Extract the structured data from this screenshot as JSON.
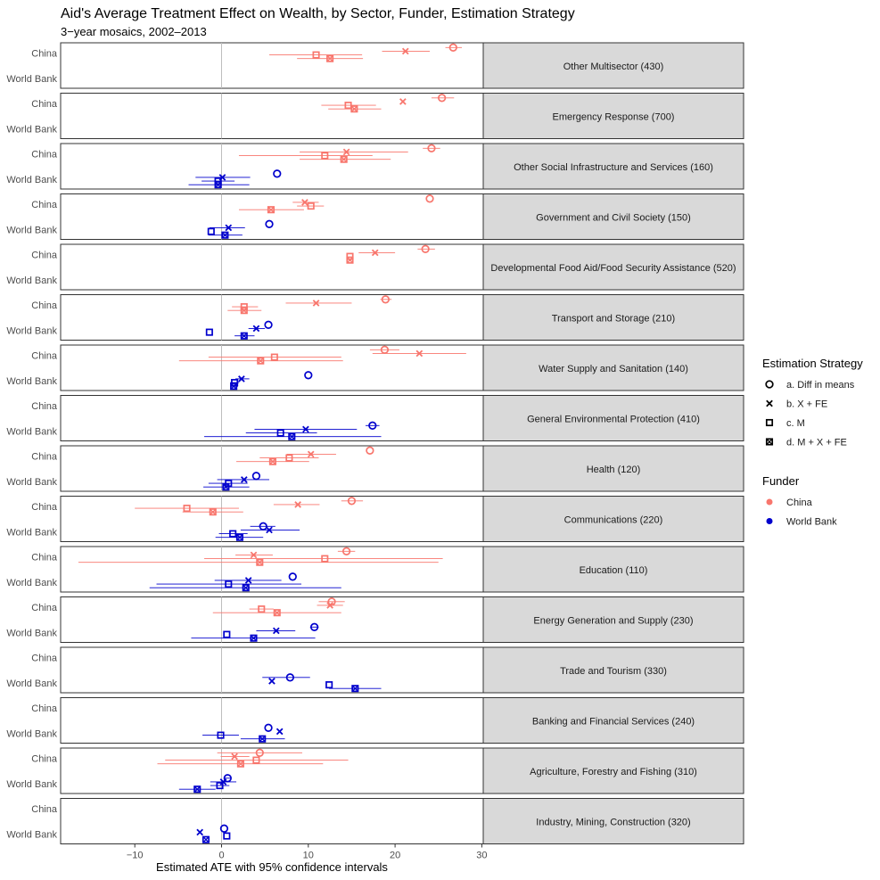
{
  "chart_data": {
    "type": "scatter",
    "title": "Aid's Average Treatment Effect on Wealth, by Sector, Funder, Estimation Strategy",
    "subtitle": "3−year mosaics, 2002–2013",
    "xlabel": "Estimated ATE with 95% confidence intervals",
    "ylabel": "",
    "xlim": [
      -19,
      30.5
    ],
    "x_ticks": [
      -10,
      0,
      10,
      20,
      30
    ],
    "x_tick_labels": [
      "−10",
      "0",
      "10",
      "20",
      "30"
    ],
    "funders": [
      "China",
      "World Bank"
    ],
    "legend_strategy": {
      "title": "Estimation Strategy",
      "entries": [
        "a. Diff in means",
        "b. X + FE",
        "c. M",
        "d. M + X + FE"
      ]
    },
    "legend_funder": {
      "title": "Funder",
      "entries": [
        "China",
        "World Bank"
      ]
    },
    "colors": {
      "China": "#F8766D",
      "World Bank": "#0000CD",
      "strip": "#D9D9D9",
      "zero_line": "#BEBEBE"
    },
    "panels": [
      {
        "label": "Other Multisector (430)",
        "china": [
          [
            26.7,
            25.8,
            27.7
          ],
          [
            21.2,
            18.5,
            24.0
          ],
          [
            10.9,
            5.5,
            16.2
          ],
          [
            12.5,
            8.7,
            16.3
          ]
        ],
        "wb": []
      },
      {
        "label": "Emergency Response (700)",
        "china": [
          [
            25.4,
            24.2,
            26.8
          ],
          [
            20.9,
            20.9,
            20.9
          ],
          [
            14.6,
            11.5,
            17.8
          ],
          [
            15.3,
            12.3,
            18.4
          ]
        ],
        "wb": []
      },
      {
        "label": "Other Social Infrastructure and Services (160)",
        "china": [
          [
            24.2,
            23.2,
            25.2
          ],
          [
            14.4,
            9.0,
            21.5
          ],
          [
            11.9,
            2.0,
            17.4
          ],
          [
            14.1,
            9.0,
            19.5
          ]
        ],
        "wb": [
          [
            6.4,
            6.4,
            6.4
          ],
          [
            0.1,
            -3.0,
            3.3
          ],
          [
            -0.4,
            -2.3,
            1.5
          ],
          [
            -0.4,
            -3.8,
            3.2
          ]
        ]
      },
      {
        "label": "Government and Civil Society (150)",
        "china": [
          [
            24.0,
            24.0,
            24.0
          ],
          [
            9.6,
            8.2,
            11.2
          ],
          [
            10.3,
            8.7,
            11.8
          ],
          [
            5.7,
            2.0,
            9.5
          ]
        ],
        "wb": [
          [
            5.5,
            5.5,
            5.5
          ],
          [
            0.8,
            -1.4,
            2.7
          ],
          [
            -1.2,
            -1.2,
            -1.2
          ],
          [
            0.4,
            -1.5,
            2.4
          ]
        ]
      },
      {
        "label": "Developmental Food Aid/Food Security Assistance (520)",
        "china": [
          [
            23.5,
            22.6,
            24.6
          ],
          [
            17.7,
            15.8,
            20.0
          ],
          [
            14.8,
            14.8,
            14.8
          ],
          [
            14.8,
            14.8,
            14.8
          ]
        ],
        "wb": []
      },
      {
        "label": "Transport and Storage (210)",
        "china": [
          [
            18.9,
            18.3,
            19.6
          ],
          [
            10.9,
            7.4,
            15.0
          ],
          [
            2.6,
            1.2,
            4.2
          ],
          [
            2.6,
            0.7,
            4.6
          ]
        ],
        "wb": [
          [
            5.4,
            5.4,
            5.4
          ],
          [
            4.0,
            3.1,
            5.0
          ],
          [
            -1.4,
            -1.4,
            -1.4
          ],
          [
            2.6,
            1.5,
            3.8
          ]
        ]
      },
      {
        "label": "Water Supply and Sanitation (140)",
        "china": [
          [
            18.8,
            17.1,
            20.5
          ],
          [
            22.8,
            17.4,
            28.2
          ],
          [
            6.1,
            -1.5,
            13.8
          ],
          [
            4.5,
            -4.9,
            14.0
          ]
        ],
        "wb": [
          [
            10.0,
            10.0,
            10.0
          ],
          [
            2.3,
            1.6,
            3.2
          ],
          [
            1.5,
            1.0,
            2.0
          ],
          [
            1.4,
            1.0,
            1.9
          ]
        ]
      },
      {
        "label": "General Environmental Protection (410)",
        "china": [],
        "wb": [
          [
            17.4,
            16.6,
            18.2
          ],
          [
            9.7,
            3.8,
            15.6
          ],
          [
            6.8,
            2.8,
            11.0
          ],
          [
            8.1,
            -2.0,
            18.4
          ]
        ]
      },
      {
        "label": "Health (120)",
        "china": [
          [
            17.1,
            17.1,
            17.1
          ],
          [
            10.3,
            7.5,
            13.2
          ],
          [
            7.8,
            4.4,
            11.2
          ],
          [
            5.9,
            1.7,
            10.1
          ]
        ],
        "wb": [
          [
            4.0,
            4.0,
            4.0
          ],
          [
            2.6,
            -0.5,
            5.5
          ],
          [
            0.8,
            -1.5,
            3.0
          ],
          [
            0.5,
            -2.1,
            3.2
          ]
        ]
      },
      {
        "label": "Communications (220)",
        "china": [
          [
            15.0,
            13.8,
            16.3
          ],
          [
            8.8,
            6.0,
            11.3
          ],
          [
            -4.0,
            -10.0,
            2.0
          ],
          [
            -1.0,
            -4.5,
            2.5
          ]
        ],
        "wb": [
          [
            4.8,
            3.3,
            6.2
          ],
          [
            5.5,
            2.2,
            9.0
          ],
          [
            1.3,
            -0.3,
            3.0
          ],
          [
            2.1,
            -0.7,
            4.8
          ]
        ]
      },
      {
        "label": "Education (110)",
        "china": [
          [
            14.4,
            13.4,
            15.4
          ],
          [
            3.7,
            1.6,
            5.9
          ],
          [
            11.9,
            -2.0,
            25.5
          ],
          [
            4.4,
            -16.5,
            25.0
          ]
        ],
        "wb": [
          [
            8.2,
            8.2,
            8.2
          ],
          [
            3.1,
            -0.8,
            6.9
          ],
          [
            0.8,
            -7.5,
            9.2
          ],
          [
            2.8,
            -8.3,
            13.8
          ]
        ]
      },
      {
        "label": "Energy Generation and Supply (230)",
        "china": [
          [
            12.7,
            11.2,
            14.2
          ],
          [
            12.5,
            11.0,
            14.0
          ],
          [
            4.6,
            3.2,
            6.0
          ],
          [
            6.4,
            -1.0,
            13.8
          ]
        ],
        "wb": [
          [
            10.7,
            10.2,
            11.2
          ],
          [
            6.3,
            4.0,
            8.5
          ],
          [
            0.6,
            0.6,
            0.6
          ],
          [
            3.7,
            -3.5,
            10.8
          ]
        ]
      },
      {
        "label": "Trade and Tourism (330)",
        "china": [],
        "wb": [
          [
            7.9,
            4.7,
            10.2
          ],
          [
            5.8,
            5.8,
            5.8
          ],
          [
            12.4,
            12.4,
            12.4
          ],
          [
            15.4,
            12.4,
            18.4
          ]
        ]
      },
      {
        "label": "Banking and Financial Services (240)",
        "china": [],
        "wb": [
          [
            5.4,
            5.4,
            5.4
          ],
          [
            6.7,
            6.7,
            6.7
          ],
          [
            -0.1,
            -2.2,
            2.0
          ],
          [
            4.7,
            2.2,
            7.3
          ]
        ]
      },
      {
        "label": "Agriculture, Forestry and Fishing (310)",
        "china": [
          [
            4.4,
            -0.5,
            9.3
          ],
          [
            1.5,
            -0.1,
            3.2
          ],
          [
            4.0,
            -6.5,
            14.6
          ],
          [
            2.2,
            -7.4,
            11.7
          ]
        ],
        "wb": [
          [
            0.7,
            0.3,
            1.1
          ],
          [
            0.2,
            -1.3,
            1.7
          ],
          [
            -0.2,
            -1.3,
            0.9
          ],
          [
            -2.8,
            -4.9,
            -0.7
          ]
        ]
      },
      {
        "label": "Industry, Mining, Construction (320)",
        "china": [],
        "wb": [
          [
            0.3,
            0.3,
            0.3
          ],
          [
            -2.5,
            -2.5,
            -2.5
          ],
          [
            0.6,
            0.6,
            0.6
          ],
          [
            -1.8,
            -1.8,
            -1.8
          ]
        ]
      }
    ]
  }
}
